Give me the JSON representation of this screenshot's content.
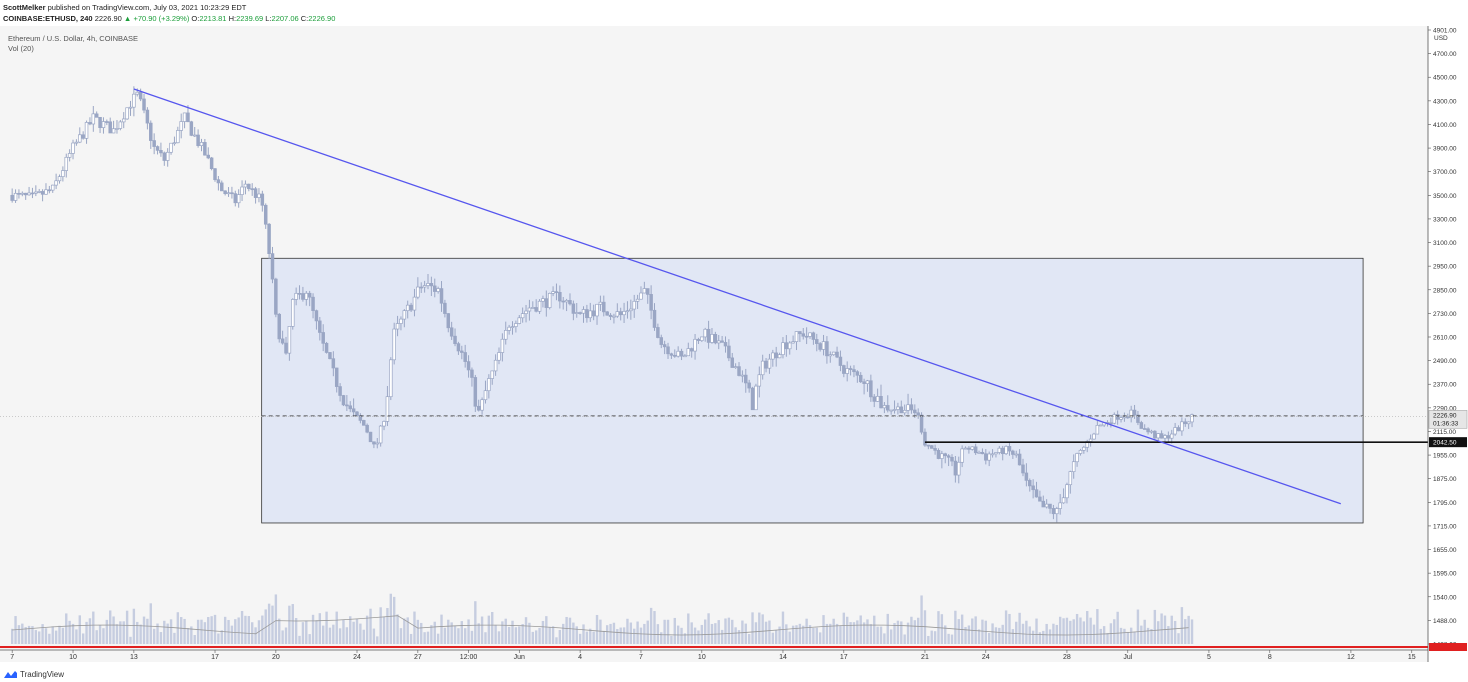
{
  "header": {
    "author": "ScottMelker",
    "published": "published on TradingView.com, July 03, 2021 10:23:29 EDT",
    "symbol": "COINBASE:ETHUSD, 240",
    "last": "2226.90",
    "change": "+70.90 (+3.29%)",
    "o_label": "O:",
    "o": "2213.81",
    "h_label": "H:",
    "h": "2239.69",
    "l_label": "L:",
    "l": "2207.06",
    "c_label": "C:",
    "c": "2226.90"
  },
  "chart_legend": {
    "title": "Ethereum / U.S. Dollar, 4h, COINBASE",
    "volume": "Vol (20)"
  },
  "footer": {
    "brand": "TradingView"
  },
  "colors": {
    "bar": "#9aa6c4",
    "zone_fill": "#e1e7f5",
    "trendline": "#5656ee",
    "volume": "#c6cde0",
    "red_line": "#e02020"
  },
  "chart_data": {
    "type": "candlestick",
    "title": "Ethereum / U.S. Dollar, 4h, COINBASE",
    "y_unit": "USD",
    "ylim": [
      1440,
      4850
    ],
    "y_ticks": [
      "4901.00",
      "4700.00",
      "4500.00",
      "4300.00",
      "4100.00",
      "3900.00",
      "3700.00",
      "3500.00",
      "3300.00",
      "3100.00",
      "2950.00",
      "2850.00",
      "2730.00",
      "2610.00",
      "2490.00",
      "2370.00",
      "2290.00",
      "2115.00",
      "1955.00",
      "1875.00",
      "1795.00",
      "1715.00",
      "1655.00",
      "1595.00",
      "1540.00",
      "1488.00",
      "1438.00"
    ],
    "y_tick_values": [
      4901,
      4700,
      4500,
      4300,
      4100,
      3900,
      3700,
      3500,
      3300,
      3100,
      2950,
      2850,
      2730,
      2610,
      2490,
      2370,
      2290,
      2115,
      1955,
      1875,
      1795,
      1715,
      1655,
      1595,
      1540,
      1488,
      1438
    ],
    "x_ticks": [
      "7",
      "10",
      "13",
      "17",
      "20",
      "24",
      "27",
      "12:00",
      "Jun",
      "4",
      "7",
      "10",
      "14",
      "17",
      "21",
      "24",
      "28",
      "Jul",
      "5",
      "8",
      "12",
      "15"
    ],
    "x_tick_days": [
      0,
      3,
      6,
      10,
      13,
      17,
      20,
      22.5,
      25,
      28,
      31,
      34,
      38,
      41,
      45,
      48,
      52,
      55,
      59,
      62,
      66,
      69
    ],
    "x_range": [
      -0.6,
      69.8
    ],
    "current_price": {
      "label": "2226.90",
      "countdown": "01:36:33",
      "value": 2226.9
    },
    "level_label": {
      "label": "2042.50",
      "value": 2042.5
    },
    "zone": {
      "top": 3000,
      "bottom": 1725,
      "start_day": 12.3,
      "end_day": 66.6
    },
    "dashed_level": 2230,
    "solid_level": {
      "value": 2042.5,
      "start_day": 45
    },
    "trendline": {
      "x1": 6,
      "y1": 4400,
      "x2": 65.5,
      "y2": 1790
    },
    "price_anchors": [
      [
        0,
        3500
      ],
      [
        1,
        3480
      ],
      [
        2,
        3550
      ],
      [
        3,
        3900
      ],
      [
        4,
        4150
      ],
      [
        5,
        4050
      ],
      [
        5.8,
        4280
      ],
      [
        6.2,
        4350
      ],
      [
        7,
        3900
      ],
      [
        7.5,
        3800
      ],
      [
        8.5,
        4150
      ],
      [
        9.5,
        3850
      ],
      [
        10.3,
        3550
      ],
      [
        11,
        3450
      ],
      [
        11.5,
        3600
      ],
      [
        12.3,
        3450
      ],
      [
        12.7,
        3000
      ],
      [
        13,
        2700
      ],
      [
        13.5,
        2500
      ],
      [
        13.8,
        2780
      ],
      [
        14.5,
        2850
      ],
      [
        15.2,
        2600
      ],
      [
        16,
        2380
      ],
      [
        16.8,
        2250
      ],
      [
        17.4,
        2150
      ],
      [
        17.9,
        1990
      ],
      [
        18.4,
        2250
      ],
      [
        18.8,
        2620
      ],
      [
        19.5,
        2750
      ],
      [
        20.2,
        2870
      ],
      [
        21,
        2850
      ],
      [
        21.5,
        2680
      ],
      [
        22.4,
        2470
      ],
      [
        23,
        2260
      ],
      [
        23.8,
        2460
      ],
      [
        24.5,
        2680
      ],
      [
        25.5,
        2760
      ],
      [
        27,
        2820
      ],
      [
        28,
        2720
      ],
      [
        29,
        2760
      ],
      [
        30,
        2720
      ],
      [
        31.2,
        2840
      ],
      [
        32,
        2580
      ],
      [
        33,
        2500
      ],
      [
        34,
        2630
      ],
      [
        35,
        2560
      ],
      [
        35.8,
        2440
      ],
      [
        36.5,
        2300
      ],
      [
        37,
        2460
      ],
      [
        38,
        2570
      ],
      [
        39,
        2630
      ],
      [
        40,
        2560
      ],
      [
        41,
        2450
      ],
      [
        42,
        2390
      ],
      [
        43,
        2290
      ],
      [
        44,
        2280
      ],
      [
        44.6,
        2260
      ],
      [
        45,
        2040
      ],
      [
        45.8,
        1950
      ],
      [
        46.5,
        1900
      ],
      [
        47,
        2010
      ],
      [
        48,
        1955
      ],
      [
        49,
        1990
      ],
      [
        49.5,
        1950
      ],
      [
        50,
        1855
      ],
      [
        50.7,
        1780
      ],
      [
        51.5,
        1760
      ],
      [
        52,
        1860
      ],
      [
        52.8,
        2000
      ],
      [
        53.5,
        2150
      ],
      [
        54.5,
        2230
      ],
      [
        55.2,
        2250
      ],
      [
        55.8,
        2130
      ],
      [
        56.7,
        2060
      ],
      [
        57.5,
        2140
      ],
      [
        58.2,
        2227
      ]
    ],
    "volume_label": "Vol (20)"
  }
}
